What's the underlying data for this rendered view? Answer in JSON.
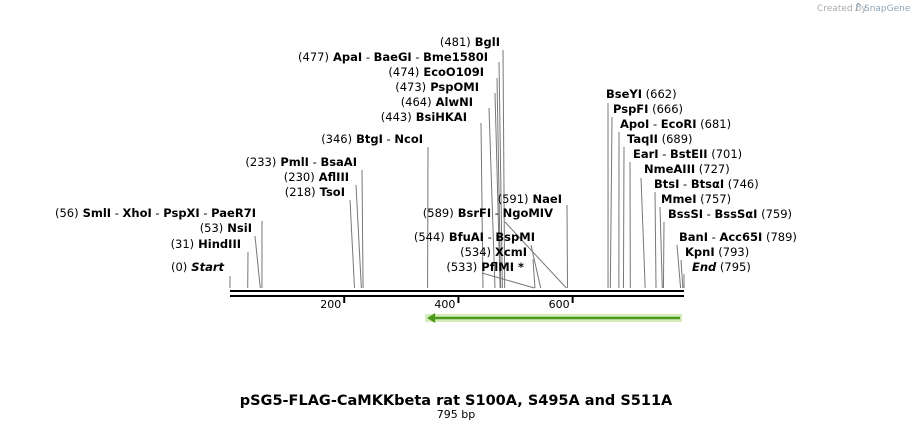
{
  "brand": {
    "created_by": "Created by",
    "name": "SnapGene"
  },
  "title": "pSG5-FLAG-CaMKKbeta rat S100A, S495A and S511A",
  "subtitle": "795 bp",
  "colors": {
    "feature_arrow": "#4c9a1c",
    "feature_outline": "#b5e08a",
    "backbone": "#000000",
    "lines": "#777777"
  },
  "sequence": {
    "length": 795,
    "ticks": [
      "200",
      "400",
      "600"
    ],
    "tick_values": [
      200,
      400,
      600
    ]
  },
  "feature": {
    "start": 340,
    "end": 795,
    "direction": "reverse"
  },
  "site_labels": [
    {
      "segs": [
        {
          "t": "(481)",
          "c": "pos"
        },
        {
          "t": " BglI",
          "c": "enz"
        }
      ],
      "bp": [
        481
      ]
    },
    {
      "segs": [
        {
          "t": "(477)",
          "c": "pos"
        },
        {
          "t": " ApaI",
          "c": "enz"
        },
        {
          "t": " - ",
          "c": "pos"
        },
        {
          "t": "BaeGI",
          "c": "enz"
        },
        {
          "t": " - ",
          "c": "pos"
        },
        {
          "t": "Bme1580I",
          "c": "enz"
        }
      ],
      "bp": [
        477
      ]
    },
    {
      "segs": [
        {
          "t": "(474)",
          "c": "pos"
        },
        {
          "t": " EcoO109I",
          "c": "enz"
        }
      ],
      "bp": [
        474
      ]
    },
    {
      "segs": [
        {
          "t": "(473)",
          "c": "pos"
        },
        {
          "t": " PspOMI",
          "c": "enz"
        }
      ],
      "bp": [
        473
      ]
    },
    {
      "segs": [
        {
          "t": "(464)",
          "c": "pos"
        },
        {
          "t": " AlwNI",
          "c": "enz"
        }
      ],
      "bp": [
        464
      ]
    },
    {
      "segs": [
        {
          "t": "(443)",
          "c": "pos"
        },
        {
          "t": " BsiHKAI",
          "c": "enz"
        }
      ],
      "bp": [
        443
      ]
    },
    {
      "segs": [
        {
          "t": "(346)",
          "c": "pos"
        },
        {
          "t": " BtgI",
          "c": "enz"
        },
        {
          "t": " - ",
          "c": "pos"
        },
        {
          "t": "NcoI",
          "c": "enz"
        }
      ],
      "bp": [
        346
      ]
    },
    {
      "segs": [
        {
          "t": "(233)",
          "c": "pos"
        },
        {
          "t": " PmlI",
          "c": "enz"
        },
        {
          "t": " - ",
          "c": "pos"
        },
        {
          "t": "BsaAI",
          "c": "enz"
        }
      ],
      "bp": [
        233
      ]
    },
    {
      "segs": [
        {
          "t": "(230)",
          "c": "pos"
        },
        {
          "t": " AflIII",
          "c": "enz"
        }
      ],
      "bp": [
        230
      ]
    },
    {
      "segs": [
        {
          "t": "(218)",
          "c": "pos"
        },
        {
          "t": " TsoI",
          "c": "enz"
        }
      ],
      "bp": [
        218
      ]
    },
    {
      "segs": [
        {
          "t": "(56)",
          "c": "pos"
        },
        {
          "t": " SmlI",
          "c": "enz"
        },
        {
          "t": " - ",
          "c": "pos"
        },
        {
          "t": "XhoI",
          "c": "enz"
        },
        {
          "t": " - ",
          "c": "pos"
        },
        {
          "t": "PspXI",
          "c": "enz"
        },
        {
          "t": " - ",
          "c": "pos"
        },
        {
          "t": "PaeR7I",
          "c": "enz"
        }
      ],
      "bp": [
        56
      ]
    },
    {
      "segs": [
        {
          "t": "(53)",
          "c": "pos"
        },
        {
          "t": " NsiI",
          "c": "enz"
        }
      ],
      "bp": [
        53
      ]
    },
    {
      "segs": [
        {
          "t": "(31)",
          "c": "pos"
        },
        {
          "t": " HindIII",
          "c": "enz"
        }
      ],
      "bp": [
        31
      ]
    },
    {
      "segs": [
        {
          "t": "(0)",
          "c": "pos"
        },
        {
          "t": " Start",
          "c": "end"
        }
      ],
      "bp": [
        0
      ]
    },
    {
      "segs": [
        {
          "t": "(591)",
          "c": "pos"
        },
        {
          "t": " NaeI",
          "c": "enz"
        }
      ],
      "bp": [
        591
      ]
    },
    {
      "segs": [
        {
          "t": "(589)",
          "c": "pos"
        },
        {
          "t": " BsrFI",
          "c": "enz"
        },
        {
          "t": " - ",
          "c": "pos"
        },
        {
          "t": "NgoMIV",
          "c": "enz"
        }
      ],
      "bp": [
        589
      ]
    },
    {
      "segs": [
        {
          "t": "(544)",
          "c": "pos"
        },
        {
          "t": " BfuAI",
          "c": "enz"
        },
        {
          "t": " - ",
          "c": "pos"
        },
        {
          "t": "BspMI",
          "c": "enz"
        }
      ],
      "bp": [
        544
      ]
    },
    {
      "segs": [
        {
          "t": "(534)",
          "c": "pos"
        },
        {
          "t": " XcmI",
          "c": "enz"
        }
      ],
      "bp": [
        534
      ]
    },
    {
      "segs": [
        {
          "t": "(533)",
          "c": "pos"
        },
        {
          "t": " PflMI *",
          "c": "enz"
        }
      ],
      "bp": [
        533
      ]
    },
    {
      "segs": [
        {
          "t": "BseYI",
          "c": "enz"
        },
        {
          "t": " (662)",
          "c": "pos"
        }
      ],
      "bp": [
        662
      ]
    },
    {
      "segs": [
        {
          "t": "PspFI",
          "c": "enz"
        },
        {
          "t": " (666)",
          "c": "pos"
        }
      ],
      "bp": [
        666
      ]
    },
    {
      "segs": [
        {
          "t": "ApoI",
          "c": "enz"
        },
        {
          "t": " - ",
          "c": "pos"
        },
        {
          "t": "EcoRI",
          "c": "enz"
        },
        {
          "t": " (681)",
          "c": "pos"
        }
      ],
      "bp": [
        681
      ]
    },
    {
      "segs": [
        {
          "t": "TaqII",
          "c": "enz"
        },
        {
          "t": " (689)",
          "c": "pos"
        }
      ],
      "bp": [
        689
      ]
    },
    {
      "segs": [
        {
          "t": "EarI",
          "c": "enz"
        },
        {
          "t": " - ",
          "c": "pos"
        },
        {
          "t": "BstEII",
          "c": "enz"
        },
        {
          "t": " (701)",
          "c": "pos"
        }
      ],
      "bp": [
        701
      ]
    },
    {
      "segs": [
        {
          "t": "NmeAIII",
          "c": "enz"
        },
        {
          "t": " (727)",
          "c": "pos"
        }
      ],
      "bp": [
        727
      ]
    },
    {
      "segs": [
        {
          "t": "BtsI",
          "c": "enz"
        },
        {
          "t": " - ",
          "c": "pos"
        },
        {
          "t": "BtsαI",
          "c": "enz"
        },
        {
          "t": " (746)",
          "c": "pos"
        }
      ],
      "bp": [
        746
      ]
    },
    {
      "segs": [
        {
          "t": "MmeI",
          "c": "enz"
        },
        {
          "t": " (757)",
          "c": "pos"
        }
      ],
      "bp": [
        757
      ]
    },
    {
      "segs": [
        {
          "t": "BssSI",
          "c": "enz"
        },
        {
          "t": " - ",
          "c": "pos"
        },
        {
          "t": "BssSαI",
          "c": "enz"
        },
        {
          "t": " (759)",
          "c": "pos"
        }
      ],
      "bp": [
        759
      ]
    },
    {
      "segs": [
        {
          "t": "BanI",
          "c": "enz"
        },
        {
          "t": " - ",
          "c": "pos"
        },
        {
          "t": "Acc65I",
          "c": "enz"
        },
        {
          "t": " (789)",
          "c": "pos"
        }
      ],
      "bp": [
        789
      ]
    },
    {
      "segs": [
        {
          "t": "KpnI",
          "c": "enz"
        },
        {
          "t": " (793)",
          "c": "pos"
        }
      ],
      "bp": [
        793
      ]
    },
    {
      "segs": [
        {
          "t": "End",
          "c": "end"
        },
        {
          "t": " (795)",
          "c": "pos"
        }
      ],
      "bp": [
        795
      ]
    }
  ]
}
